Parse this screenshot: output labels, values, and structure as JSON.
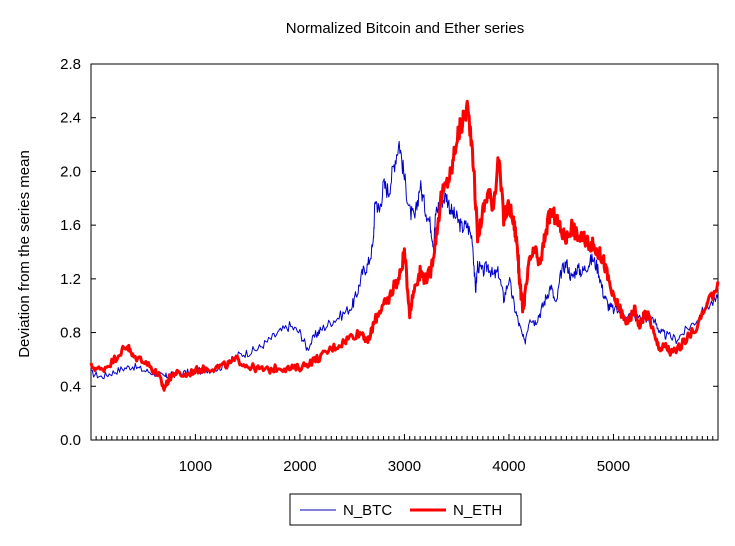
{
  "chart_data": {
    "type": "line",
    "title": "Normalized Bitcoin and Ether series",
    "xlabel": "",
    "ylabel": "Deviation from the series mean",
    "xlim": [
      1,
      6000
    ],
    "ylim": [
      0.0,
      2.8
    ],
    "x_ticks": [
      1000,
      2000,
      3000,
      4000,
      5000
    ],
    "y_ticks": [
      0.0,
      0.4,
      0.8,
      1.2,
      1.6,
      2.0,
      2.4,
      2.8
    ],
    "y_tick_labels": [
      "0.0",
      "0.4",
      "0.8",
      "1.2",
      "1.6",
      "2.0",
      "2.4",
      "2.8"
    ],
    "grid": false,
    "legend_position": "bottom",
    "series": [
      {
        "name": "N_BTC",
        "color": "#0000c8",
        "points": [
          [
            1,
            0.5
          ],
          [
            100,
            0.47
          ],
          [
            200,
            0.5
          ],
          [
            300,
            0.53
          ],
          [
            400,
            0.55
          ],
          [
            500,
            0.52
          ],
          [
            600,
            0.5
          ],
          [
            700,
            0.47
          ],
          [
            750,
            0.48
          ],
          [
            800,
            0.49
          ],
          [
            900,
            0.5
          ],
          [
            1000,
            0.51
          ],
          [
            1100,
            0.52
          ],
          [
            1200,
            0.53
          ],
          [
            1300,
            0.56
          ],
          [
            1400,
            0.63
          ],
          [
            1500,
            0.65
          ],
          [
            1600,
            0.68
          ],
          [
            1700,
            0.74
          ],
          [
            1800,
            0.8
          ],
          [
            1900,
            0.85
          ],
          [
            2000,
            0.8
          ],
          [
            2070,
            0.68
          ],
          [
            2150,
            0.78
          ],
          [
            2200,
            0.82
          ],
          [
            2300,
            0.88
          ],
          [
            2400,
            0.93
          ],
          [
            2500,
            1.0
          ],
          [
            2550,
            1.1
          ],
          [
            2600,
            1.25
          ],
          [
            2650,
            1.3
          ],
          [
            2700,
            1.45
          ],
          [
            2720,
            1.8
          ],
          [
            2760,
            1.7
          ],
          [
            2800,
            1.9
          ],
          [
            2850,
            1.85
          ],
          [
            2900,
            2.05
          ],
          [
            2950,
            2.22
          ],
          [
            3000,
            1.95
          ],
          [
            3050,
            1.7
          ],
          [
            3100,
            1.65
          ],
          [
            3150,
            1.9
          ],
          [
            3200,
            1.72
          ],
          [
            3250,
            1.6
          ],
          [
            3280,
            1.45
          ],
          [
            3300,
            1.7
          ],
          [
            3350,
            1.78
          ],
          [
            3400,
            1.82
          ],
          [
            3450,
            1.7
          ],
          [
            3500,
            1.65
          ],
          [
            3550,
            1.58
          ],
          [
            3600,
            1.6
          ],
          [
            3650,
            1.5
          ],
          [
            3680,
            1.1
          ],
          [
            3700,
            1.3
          ],
          [
            3750,
            1.25
          ],
          [
            3800,
            1.3
          ],
          [
            3850,
            1.22
          ],
          [
            3900,
            1.25
          ],
          [
            3950,
            1.05
          ],
          [
            4000,
            1.2
          ],
          [
            4050,
            1.0
          ],
          [
            4100,
            0.85
          ],
          [
            4150,
            0.72
          ],
          [
            4200,
            0.92
          ],
          [
            4250,
            0.88
          ],
          [
            4300,
            0.95
          ],
          [
            4350,
            1.05
          ],
          [
            4400,
            1.15
          ],
          [
            4450,
            1.0
          ],
          [
            4500,
            1.25
          ],
          [
            4550,
            1.32
          ],
          [
            4600,
            1.2
          ],
          [
            4650,
            1.28
          ],
          [
            4700,
            1.25
          ],
          [
            4750,
            1.3
          ],
          [
            4800,
            1.35
          ],
          [
            4850,
            1.28
          ],
          [
            4900,
            1.1
          ],
          [
            4950,
            1.0
          ],
          [
            5000,
            0.97
          ],
          [
            5100,
            0.95
          ],
          [
            5200,
            0.92
          ],
          [
            5300,
            0.9
          ],
          [
            5400,
            0.88
          ],
          [
            5450,
            0.8
          ],
          [
            5500,
            0.78
          ],
          [
            5600,
            0.75
          ],
          [
            5700,
            0.82
          ],
          [
            5800,
            0.9
          ],
          [
            5900,
            1.0
          ],
          [
            6000,
            1.05
          ]
        ]
      },
      {
        "name": "N_ETH",
        "color": "#ff0000",
        "points": [
          [
            1,
            0.55
          ],
          [
            100,
            0.52
          ],
          [
            200,
            0.58
          ],
          [
            300,
            0.67
          ],
          [
            350,
            0.7
          ],
          [
            400,
            0.62
          ],
          [
            500,
            0.6
          ],
          [
            600,
            0.52
          ],
          [
            650,
            0.48
          ],
          [
            700,
            0.38
          ],
          [
            750,
            0.46
          ],
          [
            800,
            0.5
          ],
          [
            900,
            0.48
          ],
          [
            1000,
            0.52
          ],
          [
            1100,
            0.53
          ],
          [
            1200,
            0.54
          ],
          [
            1300,
            0.56
          ],
          [
            1400,
            0.6
          ],
          [
            1500,
            0.55
          ],
          [
            1600,
            0.53
          ],
          [
            1700,
            0.52
          ],
          [
            1800,
            0.54
          ],
          [
            1900,
            0.53
          ],
          [
            2000,
            0.54
          ],
          [
            2100,
            0.58
          ],
          [
            2200,
            0.62
          ],
          [
            2300,
            0.68
          ],
          [
            2400,
            0.72
          ],
          [
            2500,
            0.78
          ],
          [
            2600,
            0.8
          ],
          [
            2650,
            0.72
          ],
          [
            2700,
            0.85
          ],
          [
            2750,
            0.95
          ],
          [
            2800,
            1.0
          ],
          [
            2850,
            1.05
          ],
          [
            2900,
            1.15
          ],
          [
            2950,
            1.2
          ],
          [
            3000,
            1.4
          ],
          [
            3050,
            0.95
          ],
          [
            3100,
            1.15
          ],
          [
            3150,
            1.25
          ],
          [
            3200,
            1.2
          ],
          [
            3250,
            1.25
          ],
          [
            3300,
            1.5
          ],
          [
            3350,
            1.8
          ],
          [
            3400,
            1.9
          ],
          [
            3450,
            2.0
          ],
          [
            3500,
            2.25
          ],
          [
            3550,
            2.35
          ],
          [
            3600,
            2.48
          ],
          [
            3650,
            2.2
          ],
          [
            3700,
            1.5
          ],
          [
            3750,
            1.7
          ],
          [
            3800,
            1.85
          ],
          [
            3850,
            1.75
          ],
          [
            3900,
            2.1
          ],
          [
            3950,
            1.65
          ],
          [
            4000,
            1.75
          ],
          [
            4050,
            1.6
          ],
          [
            4080,
            1.45
          ],
          [
            4100,
            1.2
          ],
          [
            4130,
            0.98
          ],
          [
            4150,
            1.05
          ],
          [
            4200,
            1.35
          ],
          [
            4250,
            1.4
          ],
          [
            4300,
            1.3
          ],
          [
            4350,
            1.55
          ],
          [
            4400,
            1.7
          ],
          [
            4450,
            1.65
          ],
          [
            4500,
            1.55
          ],
          [
            4550,
            1.5
          ],
          [
            4600,
            1.6
          ],
          [
            4650,
            1.52
          ],
          [
            4700,
            1.5
          ],
          [
            4750,
            1.48
          ],
          [
            4800,
            1.45
          ],
          [
            4850,
            1.4
          ],
          [
            4900,
            1.35
          ],
          [
            4950,
            1.2
          ],
          [
            5000,
            1.05
          ],
          [
            5050,
            1.0
          ],
          [
            5100,
            0.9
          ],
          [
            5150,
            0.88
          ],
          [
            5200,
            0.98
          ],
          [
            5250,
            0.85
          ],
          [
            5300,
            0.95
          ],
          [
            5350,
            0.9
          ],
          [
            5400,
            0.75
          ],
          [
            5450,
            0.68
          ],
          [
            5500,
            0.7
          ],
          [
            5550,
            0.65
          ],
          [
            5600,
            0.67
          ],
          [
            5700,
            0.75
          ],
          [
            5800,
            0.85
          ],
          [
            5900,
            1.0
          ],
          [
            6000,
            1.18
          ]
        ]
      }
    ]
  }
}
